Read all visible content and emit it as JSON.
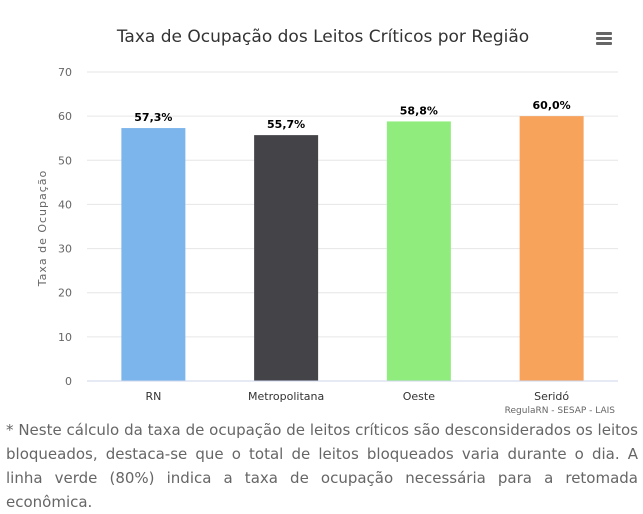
{
  "chart": {
    "title": "Taxa de Ocupação dos Leitos Críticos por Região",
    "credits": "RegulaRN - SESAP - LAIS",
    "menu_icon": "hamburger-menu-icon"
  },
  "chart_data": {
    "type": "bar",
    "title": "Taxa de Ocupação dos Leitos Críticos por Região",
    "xlabel": "",
    "ylabel": "Taxa de Ocupação",
    "categories": [
      "RN",
      "Metropolitana",
      "Oeste",
      "Seridó"
    ],
    "values": [
      57.3,
      55.7,
      58.8,
      60.0
    ],
    "data_labels": [
      "57,3%",
      "55,7%",
      "58,8%",
      "60,0%"
    ],
    "colors": [
      "#7cb5ec",
      "#434348",
      "#90ed7d",
      "#f7a35c"
    ],
    "ylim": [
      0,
      70
    ],
    "yticks": [
      0,
      10,
      20,
      30,
      40,
      50,
      60,
      70
    ],
    "grid": true,
    "legend": "none"
  },
  "footnote": "* Neste cálculo da taxa de ocupação de leitos críticos são desconsiderados os leitos bloqueados, destaca-se que o total de leitos bloqueados varia durante o dia. A linha verde (80%) indica a taxa de ocupação necessária para a retomada econômica."
}
